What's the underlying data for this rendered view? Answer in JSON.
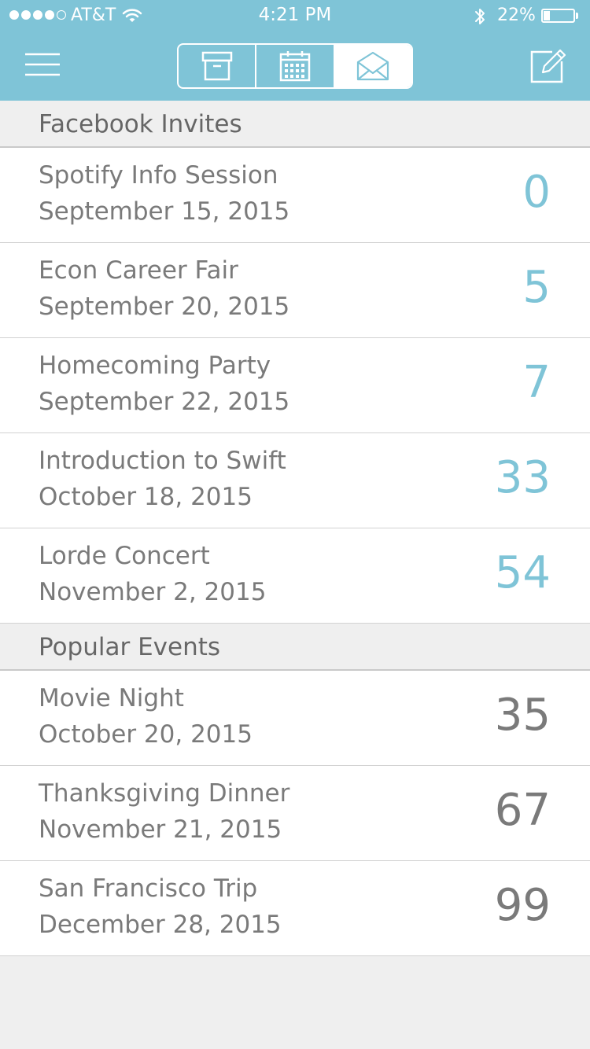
{
  "status_bar": {
    "carrier": "AT&T",
    "time": "4:21 PM",
    "battery": "22%",
    "battery_level": 0.22
  },
  "nav": {
    "tabs": [
      {
        "icon": "archive-box-icon"
      },
      {
        "icon": "calendar-icon"
      },
      {
        "icon": "envelope-icon",
        "active": true
      }
    ]
  },
  "colors": {
    "accent": "#7fc4d7",
    "invite_count": "#7fc4d7",
    "popular_count": "#7a7a7a"
  },
  "sections": [
    {
      "title": "Facebook Invites",
      "rows": [
        {
          "title": "Spotify Info Session",
          "date": "September 15, 2015",
          "count": "0"
        },
        {
          "title": "Econ Career Fair",
          "date": "September 20, 2015",
          "count": "5"
        },
        {
          "title": "Homecoming Party",
          "date": "September 22, 2015",
          "count": "7"
        },
        {
          "title": "Introduction to Swift",
          "date": "October 18, 2015",
          "count": "33"
        },
        {
          "title": "Lorde Concert",
          "date": "November 2, 2015",
          "count": "54"
        }
      ]
    },
    {
      "title": "Popular Events",
      "rows": [
        {
          "title": "Movie Night",
          "date": "October 20, 2015",
          "count": "35"
        },
        {
          "title": "Thanksgiving Dinner",
          "date": "November 21, 2015",
          "count": "67"
        },
        {
          "title": "San Francisco Trip",
          "date": "December 28, 2015",
          "count": "99"
        }
      ]
    }
  ]
}
